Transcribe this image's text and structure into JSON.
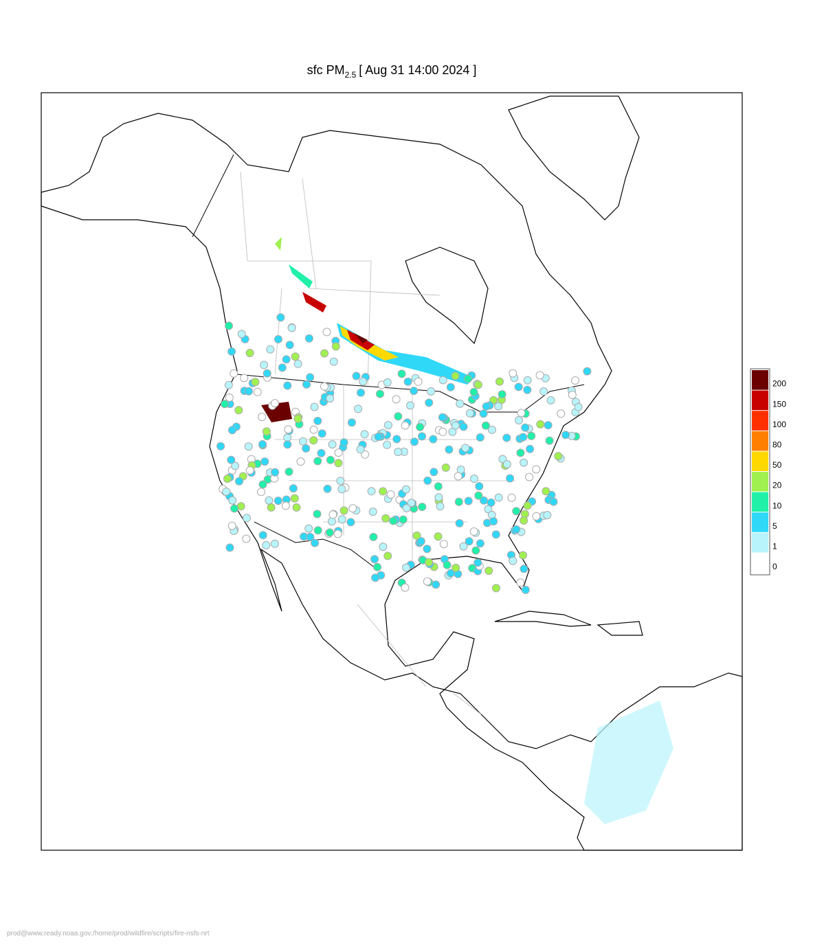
{
  "title": {
    "prefix": "sfc PM",
    "subscript": "2.5",
    "suffix": "[ Aug 31 14:00 2024 ]"
  },
  "legend": {
    "labels": [
      200,
      150,
      100,
      80,
      50,
      20,
      10,
      5,
      1,
      0
    ],
    "colors": [
      "#6b0000",
      "#c80000",
      "#ff3000",
      "#ff8000",
      "#ffd800",
      "#a0f050",
      "#20f0a8",
      "#30d8f8",
      "#b8f4fc",
      "#ffffff"
    ]
  },
  "footer": "prod@www.ready.noaa.gov:/home/prod/wildfire/scripts/fire-nsfs-nrt"
}
